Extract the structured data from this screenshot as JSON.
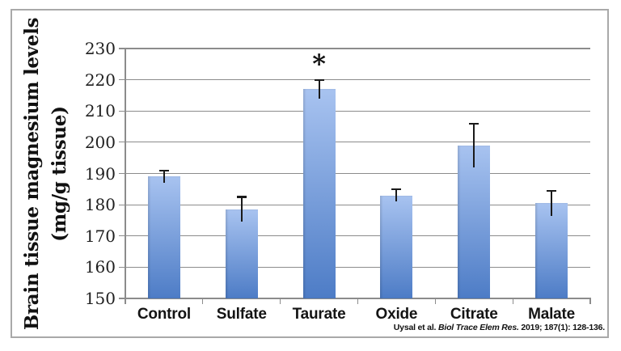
{
  "figure": {
    "y_axis_title": {
      "line1": "Brain tissue magnesium levels",
      "line2": "(mg/g tissue)"
    },
    "citation": {
      "authors": "Uysal et al. ",
      "journal": "Biol Trace Elem Res.",
      "details": " 2019; 187(1): 128-136."
    }
  },
  "chart_data": {
    "type": "bar",
    "title": "",
    "categories": [
      "Control",
      "Sulfate",
      "Taurate",
      "Oxide",
      "Citrate",
      "Malate"
    ],
    "values": [
      189,
      178.5,
      217,
      183,
      199,
      180.5
    ],
    "error_bars_plus_minus": [
      2,
      4,
      3,
      2,
      7,
      4
    ],
    "ylabel": "Brain tissue magnesium levels (mg/g tissue)",
    "xlabel": "",
    "ylim": [
      150,
      230
    ],
    "ytick_step": 10,
    "ytick_labels": [
      "150",
      "160",
      "170",
      "180",
      "190",
      "200",
      "210",
      "220",
      "230"
    ],
    "grid": "horizontal",
    "legend": "none",
    "annotations": [
      {
        "text": "*",
        "category": "Taurate"
      }
    ]
  },
  "colors": {
    "background": "#ffffff",
    "frame_border": "#a9a9a9",
    "gridline": "#8c8c8c",
    "axis": "#8c8c8c",
    "error_bar": "#1a1a1a",
    "text": "#1a1a1a",
    "bar_gradient_top": "#a8c3f0",
    "bar_gradient_bottom": "#4d7cc6"
  }
}
